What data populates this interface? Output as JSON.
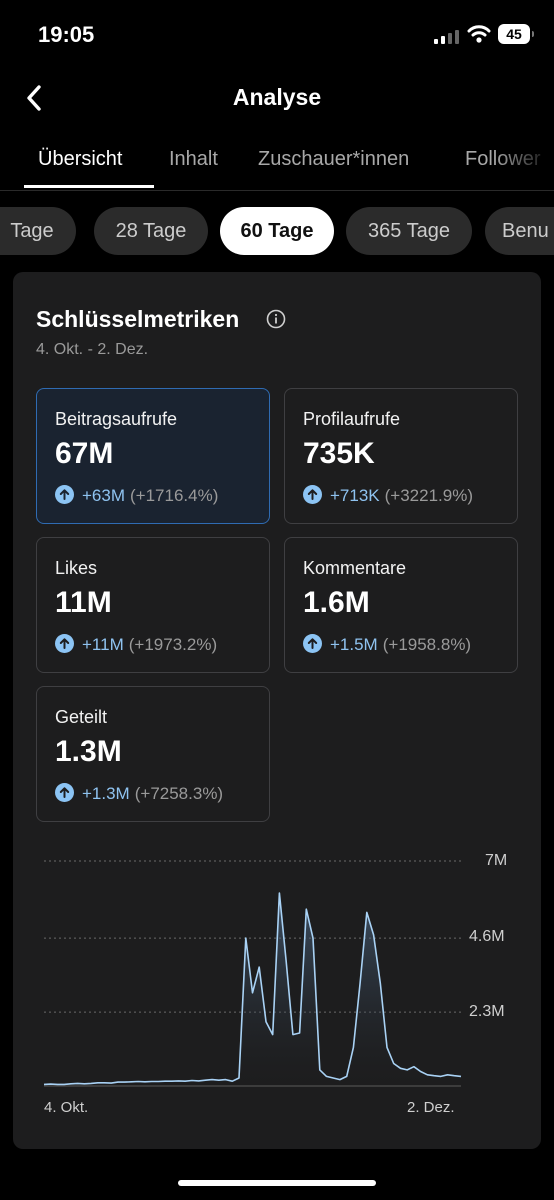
{
  "status_bar": {
    "time": "19:05",
    "battery": "45"
  },
  "nav": {
    "title": "Analyse"
  },
  "tabs": [
    {
      "label": "Übersicht"
    },
    {
      "label": "Inhalt"
    },
    {
      "label": "Zuschauer*innen"
    },
    {
      "label": "Follower"
    }
  ],
  "ranges": [
    {
      "label": "Tage"
    },
    {
      "label": "28 Tage"
    },
    {
      "label": "60 Tage"
    },
    {
      "label": "365 Tage"
    },
    {
      "label": "Benu"
    }
  ],
  "card": {
    "title": "Schlüsselmetriken",
    "date_range": "4. Okt. - 2. Dez."
  },
  "metrics": [
    {
      "label": "Beitragsaufrufe",
      "value": "67M",
      "change": "+63M",
      "pct": "(+1716.4%)"
    },
    {
      "label": "Profilaufrufe",
      "value": "735K",
      "change": "+713K",
      "pct": "(+3221.9%)"
    },
    {
      "label": "Likes",
      "value": "11M",
      "change": "+11M",
      "pct": "(+1973.2%)"
    },
    {
      "label": "Kommentare",
      "value": "1.6M",
      "change": "+1.5M",
      "pct": "(+1958.8%)"
    },
    {
      "label": "Geteilt",
      "value": "1.3M",
      "change": "+1.3M",
      "pct": "(+7258.3%)"
    }
  ],
  "colors": {
    "accent": "#8cc4f4",
    "selected_border": "#2f6bb2",
    "card": "#1d1d1e"
  },
  "chart_data": {
    "type": "area",
    "yticks": [
      "7M",
      "4.6M",
      "2.3M"
    ],
    "ylim": [
      0,
      7
    ],
    "x_start_label": "4. Okt.",
    "x_end_label": "2. Dez.",
    "values": [
      0.05,
      0.06,
      0.05,
      0.05,
      0.07,
      0.08,
      0.07,
      0.08,
      0.1,
      0.1,
      0.09,
      0.12,
      0.12,
      0.13,
      0.14,
      0.13,
      0.14,
      0.14,
      0.15,
      0.15,
      0.16,
      0.15,
      0.17,
      0.16,
      0.18,
      0.2,
      0.18,
      0.2,
      0.15,
      0.25,
      4.6,
      2.9,
      3.7,
      2.0,
      1.6,
      6.0,
      3.9,
      1.6,
      1.65,
      5.5,
      4.6,
      0.5,
      0.3,
      0.25,
      0.2,
      0.3,
      1.2,
      3.2,
      5.4,
      4.7,
      3.2,
      1.2,
      0.7,
      0.55,
      0.5,
      0.6,
      0.45,
      0.35,
      0.32,
      0.3,
      0.35,
      0.32,
      0.3
    ]
  }
}
